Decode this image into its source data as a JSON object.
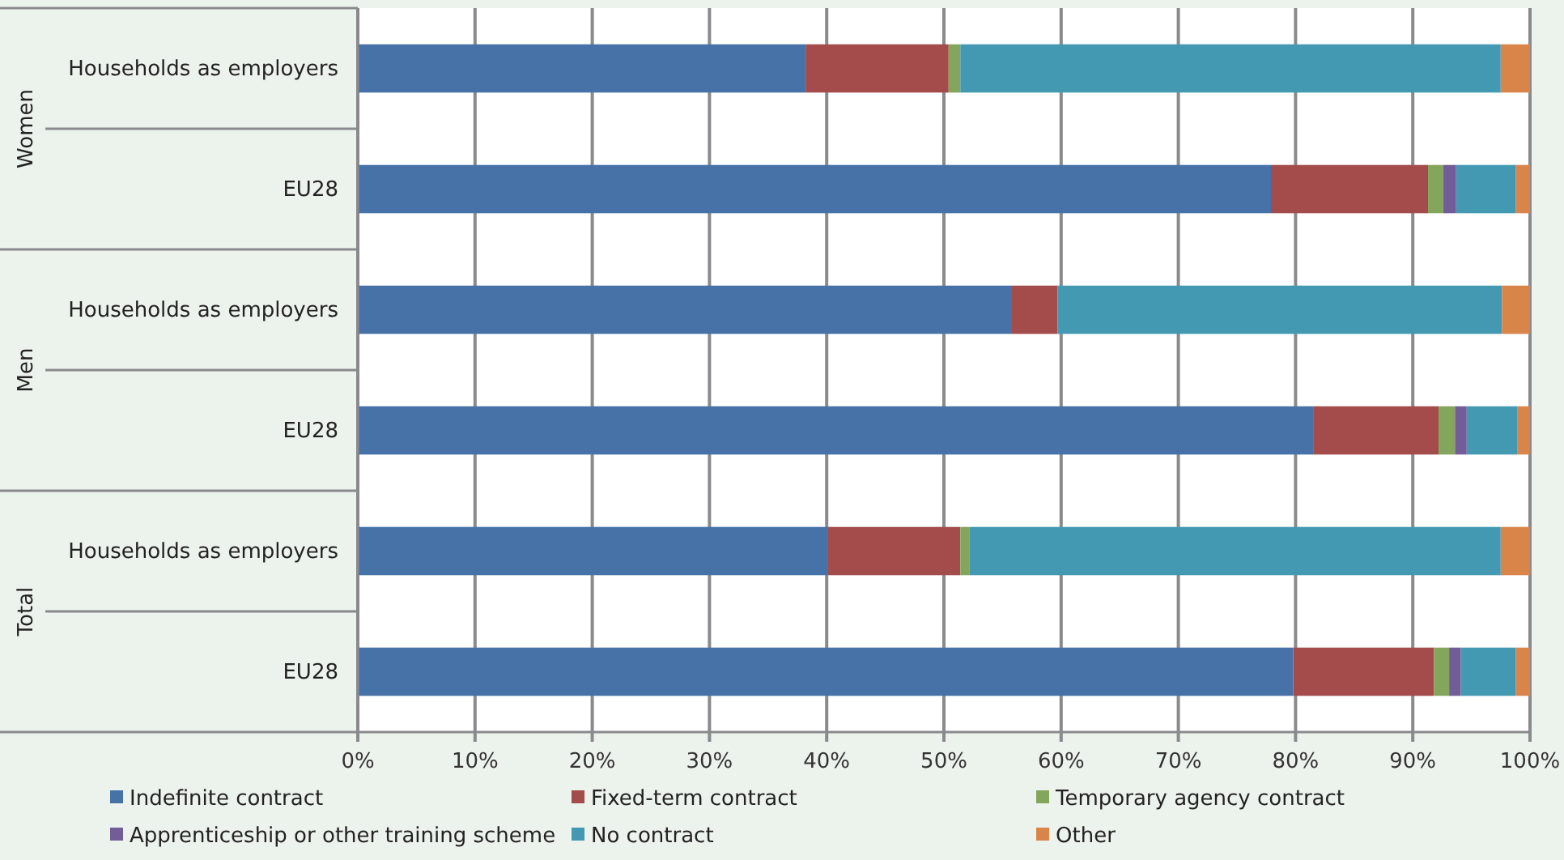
{
  "chart_data": {
    "type": "bar",
    "orientation": "horizontal",
    "stacked": true,
    "categories": [
      "Households as employers",
      "EU28",
      "Households as employers",
      "EU28",
      "Households as employers",
      "EU28"
    ],
    "annotations": [
      "Women",
      "Men",
      "Total"
    ],
    "series": [
      {
        "name": "Indefinite contract",
        "color": "#4672a8",
        "values": [
          38.2,
          77.9,
          55.8,
          81.5,
          40.1,
          79.8
        ]
      },
      {
        "name": "Fixed-term contract",
        "color": "#a44b4b",
        "values": [
          12.2,
          13.4,
          3.9,
          10.7,
          11.3,
          12.0
        ]
      },
      {
        "name": "Temporary agency contract",
        "color": "#84a55c",
        "values": [
          1.0,
          1.3,
          0,
          1.4,
          0.8,
          1.3
        ]
      },
      {
        "name": "Apprenticeship or other training scheme",
        "color": "#735d99",
        "values": [
          0,
          1.1,
          0,
          1.0,
          0,
          1.0
        ]
      },
      {
        "name": "No contract",
        "color": "#4399b2",
        "values": [
          46.1,
          5.1,
          37.9,
          4.3,
          45.3,
          4.7
        ]
      },
      {
        "name": "Other",
        "color": "#d9854a",
        "values": [
          2.5,
          1.2,
          2.4,
          1.1,
          2.5,
          1.2
        ]
      }
    ],
    "xlim": [
      0,
      100
    ],
    "xticks": [
      {
        "value": 0,
        "label": "0%"
      },
      {
        "value": 10,
        "label": "10%"
      },
      {
        "value": 20,
        "label": "20%"
      },
      {
        "value": 30,
        "label": "30%"
      },
      {
        "value": 40,
        "label": "40%"
      },
      {
        "value": 50,
        "label": "50%"
      },
      {
        "value": 60,
        "label": "60%"
      },
      {
        "value": 70,
        "label": "70%"
      },
      {
        "value": 80,
        "label": "80%"
      },
      {
        "value": 90,
        "label": "90%"
      },
      {
        "value": 100,
        "label": "100%"
      }
    ],
    "grid": "x",
    "legend": "bottom"
  }
}
